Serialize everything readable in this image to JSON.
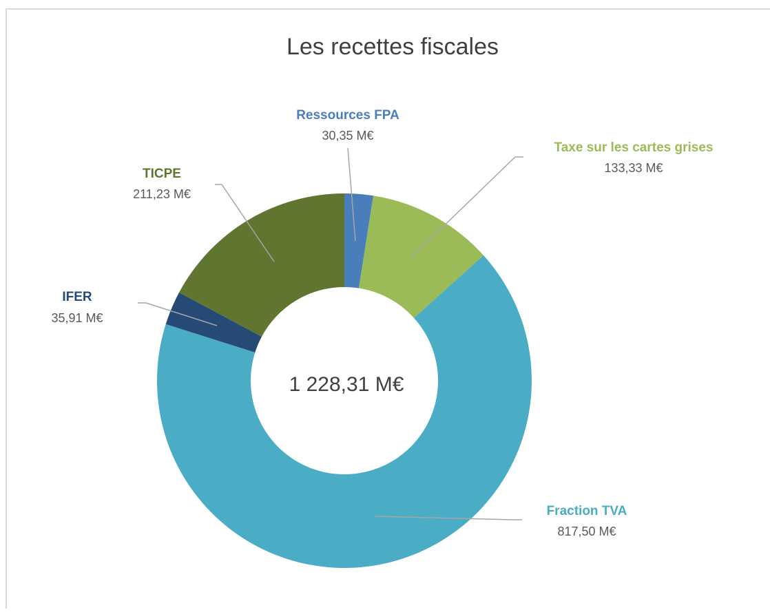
{
  "chart_data": {
    "type": "donut",
    "title": "Les recettes fiscales",
    "center_label": "1 228,31 M€",
    "categories": [
      "Ressources FPA",
      "Taxe sur les cartes grises",
      "Fraction TVA",
      "IFER",
      "TICPE"
    ],
    "values": [
      30.35,
      133.33,
      817.5,
      35.91,
      211.23
    ],
    "value_labels": [
      "30,35 M€",
      "133,33 M€",
      "817,50 M€",
      "35,91 M€",
      "211,23 M€"
    ],
    "colors": [
      "#4a7ebb",
      "#9bbb59",
      "#4bacc6",
      "#254a75",
      "#5f7530"
    ]
  }
}
